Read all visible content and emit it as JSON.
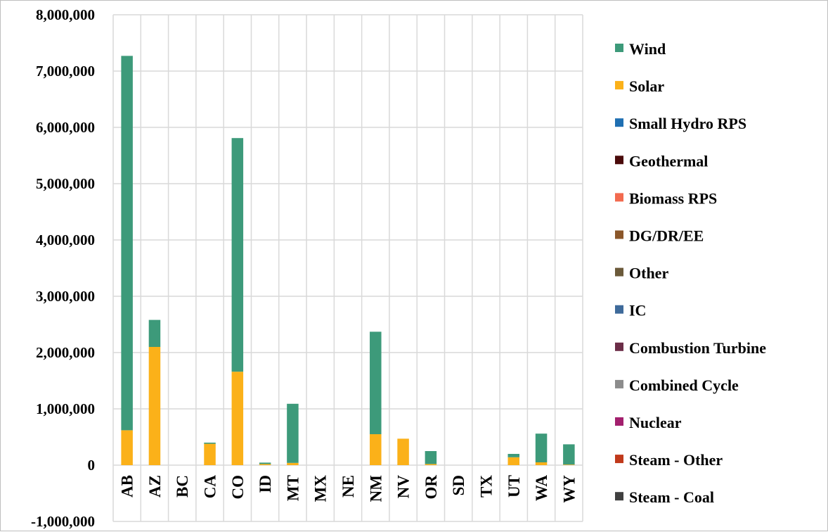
{
  "chart_data": {
    "type": "bar",
    "stacked": true,
    "title": "",
    "xlabel": "",
    "ylabel": "",
    "ylim": [
      -1000000,
      8000000
    ],
    "y_ticks": [
      -1000000,
      0,
      1000000,
      2000000,
      3000000,
      4000000,
      5000000,
      6000000,
      7000000,
      8000000
    ],
    "y_tick_labels": [
      "-1,000,000",
      "0",
      "1,000,000",
      "2,000,000",
      "3,000,000",
      "4,000,000",
      "5,000,000",
      "6,000,000",
      "7,000,000",
      "8,000,000"
    ],
    "grid": true,
    "legend_position": "right",
    "categories": [
      "AB",
      "AZ",
      "BC",
      "CA",
      "CO",
      "ID",
      "MT",
      "MX",
      "NE",
      "NM",
      "NV",
      "OR",
      "SD",
      "TX",
      "UT",
      "WA",
      "WY"
    ],
    "series": [
      {
        "name": "Steam - Coal",
        "color": "#404040",
        "values": [
          0,
          0,
          0,
          0,
          0,
          0,
          0,
          0,
          0,
          0,
          0,
          0,
          0,
          0,
          0,
          0,
          0
        ]
      },
      {
        "name": "Steam - Other",
        "color": "#c0391b",
        "values": [
          0,
          0,
          0,
          0,
          0,
          0,
          0,
          0,
          0,
          0,
          0,
          0,
          0,
          0,
          0,
          0,
          0
        ]
      },
      {
        "name": "Nuclear",
        "color": "#a3206e",
        "values": [
          0,
          0,
          0,
          0,
          0,
          0,
          0,
          0,
          0,
          0,
          0,
          0,
          0,
          0,
          0,
          0,
          0
        ]
      },
      {
        "name": "Combined Cycle",
        "color": "#8c8c8c",
        "values": [
          0,
          0,
          0,
          0,
          0,
          0,
          0,
          0,
          0,
          0,
          0,
          0,
          0,
          0,
          0,
          0,
          0
        ]
      },
      {
        "name": "Combustion Turbine",
        "color": "#6b2d47",
        "values": [
          0,
          0,
          0,
          0,
          0,
          0,
          0,
          0,
          0,
          0,
          0,
          0,
          0,
          0,
          0,
          0,
          0
        ]
      },
      {
        "name": "IC",
        "color": "#3e6a9a",
        "values": [
          0,
          0,
          0,
          0,
          0,
          0,
          0,
          0,
          0,
          0,
          0,
          0,
          0,
          0,
          0,
          0,
          0
        ]
      },
      {
        "name": "Other",
        "color": "#6b5a3a",
        "values": [
          0,
          0,
          0,
          0,
          0,
          0,
          0,
          0,
          0,
          0,
          0,
          0,
          0,
          0,
          0,
          0,
          0
        ]
      },
      {
        "name": "DG/DR/EE",
        "color": "#8b572a",
        "values": [
          0,
          0,
          0,
          0,
          0,
          0,
          0,
          0,
          0,
          0,
          0,
          0,
          0,
          0,
          0,
          0,
          0
        ]
      },
      {
        "name": "Biomass RPS",
        "color": "#f26a4f",
        "values": [
          0,
          0,
          0,
          0,
          0,
          0,
          0,
          0,
          0,
          0,
          0,
          0,
          0,
          0,
          0,
          0,
          0
        ]
      },
      {
        "name": "Geothermal",
        "color": "#4a0a0a",
        "values": [
          0,
          0,
          0,
          0,
          0,
          0,
          0,
          0,
          0,
          0,
          0,
          0,
          0,
          0,
          0,
          0,
          0
        ]
      },
      {
        "name": "Small Hydro RPS",
        "color": "#1f6fb2",
        "values": [
          0,
          0,
          0,
          0,
          0,
          0,
          0,
          0,
          0,
          0,
          0,
          0,
          0,
          0,
          0,
          0,
          0
        ]
      },
      {
        "name": "Solar",
        "color": "#fbb119",
        "values": [
          620000,
          2100000,
          0,
          380000,
          1660000,
          20000,
          40000,
          0,
          0,
          550000,
          470000,
          20000,
          0,
          0,
          140000,
          50000,
          10000
        ]
      },
      {
        "name": "Wind",
        "color": "#3d9a7a",
        "values": [
          6650000,
          480000,
          0,
          20000,
          4150000,
          25000,
          1050000,
          0,
          0,
          1820000,
          0,
          230000,
          0,
          0,
          60000,
          510000,
          360000
        ]
      }
    ],
    "legend_order": [
      "Wind",
      "Solar",
      "Small Hydro RPS",
      "Geothermal",
      "Biomass RPS",
      "DG/DR/EE",
      "Other",
      "IC",
      "Combustion Turbine",
      "Combined Cycle",
      "Nuclear",
      "Steam - Other",
      "Steam - Coal"
    ]
  }
}
